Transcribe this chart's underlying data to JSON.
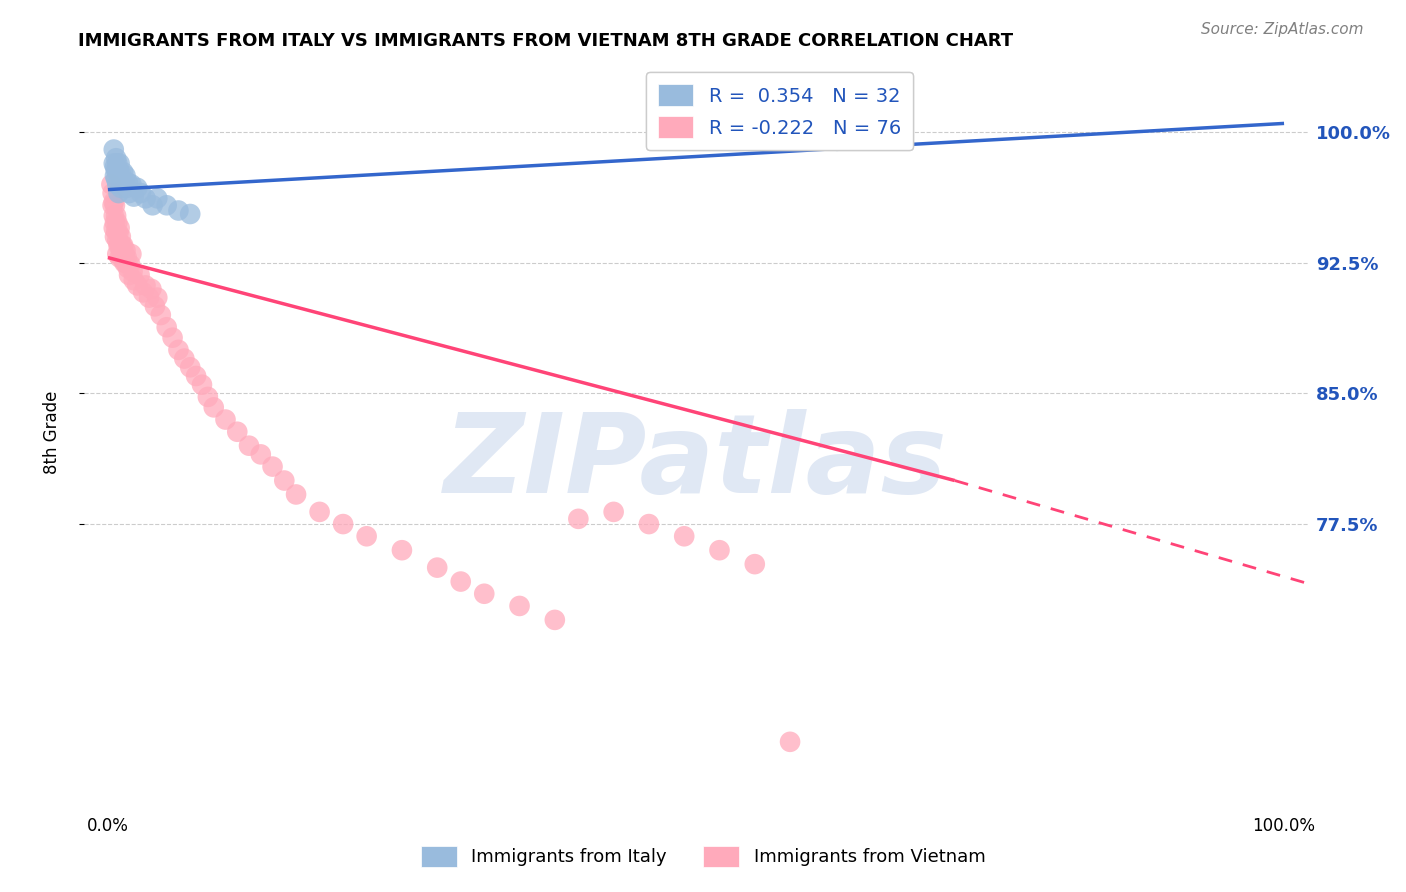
{
  "title": "IMMIGRANTS FROM ITALY VS IMMIGRANTS FROM VIETNAM 8TH GRADE CORRELATION CHART",
  "source": "Source: ZipAtlas.com",
  "ylabel": "8th Grade",
  "ytick_labels": [
    "100.0%",
    "92.5%",
    "85.0%",
    "77.5%"
  ],
  "ytick_values": [
    1.0,
    0.925,
    0.85,
    0.775
  ],
  "legend_italy": "Immigrants from Italy",
  "legend_vietnam": "Immigrants from Vietnam",
  "R_italy": 0.354,
  "N_italy": 32,
  "R_vietnam": -0.222,
  "N_vietnam": 76,
  "italy_color": "#99BBDD",
  "vietnam_color": "#FFAABB",
  "italy_line_color": "#3366CC",
  "vietnam_line_color": "#FF4477",
  "watermark": "ZIPatlas",
  "background_color": "#FFFFFF",
  "grid_color": "#CCCCCC",
  "italy_x": [
    0.005,
    0.005,
    0.006,
    0.006,
    0.007,
    0.007,
    0.007,
    0.008,
    0.008,
    0.009,
    0.009,
    0.01,
    0.011,
    0.011,
    0.012,
    0.013,
    0.014,
    0.015,
    0.016,
    0.017,
    0.018,
    0.02,
    0.022,
    0.025,
    0.028,
    0.032,
    0.038,
    0.042,
    0.05,
    0.06,
    0.07,
    0.62
  ],
  "italy_y": [
    0.99,
    0.982,
    0.98,
    0.975,
    0.985,
    0.978,
    0.973,
    0.982,
    0.97,
    0.978,
    0.965,
    0.982,
    0.976,
    0.968,
    0.973,
    0.977,
    0.971,
    0.975,
    0.968,
    0.971,
    0.965,
    0.97,
    0.963,
    0.968,
    0.965,
    0.962,
    0.958,
    0.962,
    0.958,
    0.955,
    0.953,
    0.995
  ],
  "vietnam_x": [
    0.003,
    0.004,
    0.004,
    0.005,
    0.005,
    0.005,
    0.006,
    0.006,
    0.006,
    0.007,
    0.007,
    0.008,
    0.008,
    0.008,
    0.009,
    0.009,
    0.01,
    0.01,
    0.01,
    0.011,
    0.011,
    0.012,
    0.012,
    0.013,
    0.014,
    0.014,
    0.015,
    0.015,
    0.016,
    0.017,
    0.018,
    0.019,
    0.02,
    0.021,
    0.022,
    0.025,
    0.027,
    0.03,
    0.032,
    0.035,
    0.037,
    0.04,
    0.042,
    0.045,
    0.05,
    0.055,
    0.06,
    0.065,
    0.07,
    0.075,
    0.08,
    0.085,
    0.09,
    0.1,
    0.11,
    0.12,
    0.13,
    0.14,
    0.15,
    0.16,
    0.18,
    0.2,
    0.22,
    0.25,
    0.28,
    0.3,
    0.32,
    0.35,
    0.38,
    0.4,
    0.43,
    0.46,
    0.49,
    0.52,
    0.55,
    0.58
  ],
  "vietnam_y": [
    0.97,
    0.965,
    0.958,
    0.96,
    0.952,
    0.945,
    0.958,
    0.948,
    0.94,
    0.952,
    0.943,
    0.948,
    0.938,
    0.93,
    0.942,
    0.935,
    0.945,
    0.935,
    0.928,
    0.94,
    0.932,
    0.935,
    0.928,
    0.935,
    0.925,
    0.93,
    0.932,
    0.925,
    0.928,
    0.922,
    0.918,
    0.924,
    0.93,
    0.92,
    0.915,
    0.912,
    0.918,
    0.908,
    0.912,
    0.905,
    0.91,
    0.9,
    0.905,
    0.895,
    0.888,
    0.882,
    0.875,
    0.87,
    0.865,
    0.86,
    0.855,
    0.848,
    0.842,
    0.835,
    0.828,
    0.82,
    0.815,
    0.808,
    0.8,
    0.792,
    0.782,
    0.775,
    0.768,
    0.76,
    0.75,
    0.742,
    0.735,
    0.728,
    0.72,
    0.778,
    0.782,
    0.775,
    0.768,
    0.76,
    0.752,
    0.65
  ],
  "xmin": 0.0,
  "xmax": 1.0,
  "ymin": 0.615,
  "ymax": 1.04
}
